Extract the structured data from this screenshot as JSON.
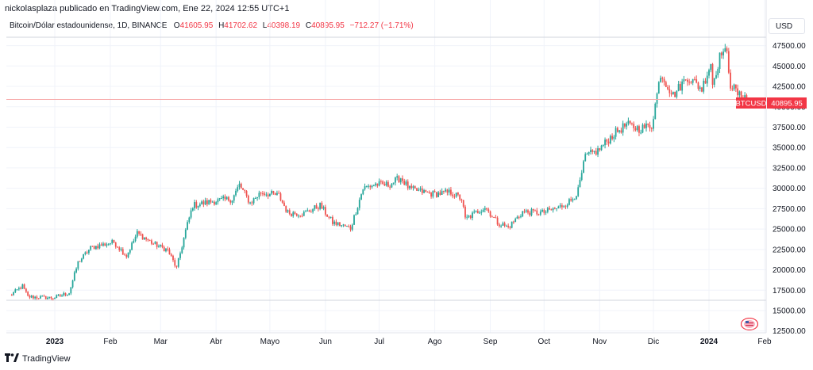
{
  "header": {
    "publisher": "nickolasplaza publicado en TradingView.com, Ene 22, 2024 12:55 UTC+1"
  },
  "legend": {
    "symbol": "Bitcoin/Dólar estadounidense, 1D, BINANCE",
    "open_label": "O",
    "open": "41605.95",
    "high_label": "H",
    "high": "41702.62",
    "low_label": "L",
    "low": "40398.19",
    "close_label": "C",
    "close": "40895.95",
    "change": "−712.27 (−1.71%)"
  },
  "currency_button": "USD",
  "price_tag": {
    "symbol": "BTCUSD",
    "price": "40895.95"
  },
  "footer": {
    "brand": "TradingView"
  },
  "colors": {
    "up": "#26a69a",
    "down": "#ef5350",
    "grid": "#f0f3fa",
    "axis_text": "#131722",
    "price_line": "#f7a9a9",
    "tag": "#f23645"
  },
  "chart_data": {
    "type": "candlestick",
    "symbol": "BTCUSD",
    "interval": "1D",
    "ylim": [
      11500,
      49500
    ],
    "y_ticks": [
      "12500.00",
      "15000.00",
      "17500.00",
      "20000.00",
      "22500.00",
      "25000.00",
      "27500.00",
      "30000.00",
      "32500.00",
      "35000.00",
      "37500.00",
      "40000.00",
      "42500.00",
      "45000.00",
      "47500.00"
    ],
    "x_ticks": [
      {
        "label": "2023",
        "bold": true,
        "date": "2023-01-01"
      },
      {
        "label": "Feb",
        "bold": false,
        "date": "2023-02-01"
      },
      {
        "label": "Mar",
        "bold": false,
        "date": "2023-03-01"
      },
      {
        "label": "Abr",
        "bold": false,
        "date": "2023-04-01"
      },
      {
        "label": "Mayo",
        "bold": false,
        "date": "2023-05-01"
      },
      {
        "label": "Jun",
        "bold": false,
        "date": "2023-06-01"
      },
      {
        "label": "Jul",
        "bold": false,
        "date": "2023-07-01"
      },
      {
        "label": "Ago",
        "bold": false,
        "date": "2023-08-01"
      },
      {
        "label": "Sep",
        "bold": false,
        "date": "2023-09-01"
      },
      {
        "label": "Oct",
        "bold": false,
        "date": "2023-10-01"
      },
      {
        "label": "Nov",
        "bold": false,
        "date": "2023-11-01"
      },
      {
        "label": "Dic",
        "bold": false,
        "date": "2023-12-01"
      },
      {
        "label": "2024",
        "bold": true,
        "date": "2024-01-01"
      },
      {
        "label": "Feb",
        "bold": false,
        "date": "2024-02-01"
      }
    ],
    "last_price": 40895.95,
    "close_path": [
      [
        "2022-12-07",
        16850
      ],
      [
        "2022-12-14",
        18000
      ],
      [
        "2022-12-17",
        16700
      ],
      [
        "2022-12-31",
        16550
      ],
      [
        "2023-01-09",
        17200
      ],
      [
        "2023-01-14",
        20900
      ],
      [
        "2023-01-21",
        22700
      ],
      [
        "2023-01-30",
        23200
      ],
      [
        "2023-02-03",
        23400
      ],
      [
        "2023-02-10",
        21700
      ],
      [
        "2023-02-16",
        24500
      ],
      [
        "2023-02-25",
        23200
      ],
      [
        "2023-03-05",
        22400
      ],
      [
        "2023-03-10",
        20200
      ],
      [
        "2023-03-15",
        24800
      ],
      [
        "2023-03-19",
        27900
      ],
      [
        "2023-03-30",
        28400
      ],
      [
        "2023-04-10",
        28700
      ],
      [
        "2023-04-14",
        30400
      ],
      [
        "2023-04-20",
        28200
      ],
      [
        "2023-04-26",
        29500
      ],
      [
        "2023-05-06",
        29100
      ],
      [
        "2023-05-11",
        27000
      ],
      [
        "2023-05-20",
        26900
      ],
      [
        "2023-05-29",
        27900
      ],
      [
        "2023-06-05",
        25800
      ],
      [
        "2023-06-15",
        25100
      ],
      [
        "2023-06-22",
        30000
      ],
      [
        "2023-06-29",
        30500
      ],
      [
        "2023-07-06",
        30400
      ],
      [
        "2023-07-13",
        31300
      ],
      [
        "2023-07-18",
        29900
      ],
      [
        "2023-07-31",
        29300
      ],
      [
        "2023-08-10",
        29500
      ],
      [
        "2023-08-16",
        28700
      ],
      [
        "2023-08-18",
        26200
      ],
      [
        "2023-08-29",
        27700
      ],
      [
        "2023-09-05",
        25800
      ],
      [
        "2023-09-11",
        25200
      ],
      [
        "2023-09-19",
        27100
      ],
      [
        "2023-09-30",
        27000
      ],
      [
        "2023-10-09",
        27600
      ],
      [
        "2023-10-16",
        28500
      ],
      [
        "2023-10-20",
        29700
      ],
      [
        "2023-10-24",
        33900
      ],
      [
        "2023-10-31",
        34600
      ],
      [
        "2023-11-09",
        36700
      ],
      [
        "2023-11-16",
        37800
      ],
      [
        "2023-11-23",
        37300
      ],
      [
        "2023-11-30",
        37700
      ],
      [
        "2023-12-05",
        44100
      ],
      [
        "2023-12-12",
        41400
      ],
      [
        "2023-12-20",
        43700
      ],
      [
        "2023-12-28",
        42200
      ],
      [
        "2024-01-02",
        45400
      ],
      [
        "2024-01-03",
        42800
      ],
      [
        "2024-01-08",
        46900
      ],
      [
        "2024-01-11",
        46400
      ],
      [
        "2024-01-13",
        42800
      ],
      [
        "2024-01-18",
        41300
      ],
      [
        "2024-01-21",
        41600
      ],
      [
        "2024-01-22",
        40896
      ]
    ]
  }
}
